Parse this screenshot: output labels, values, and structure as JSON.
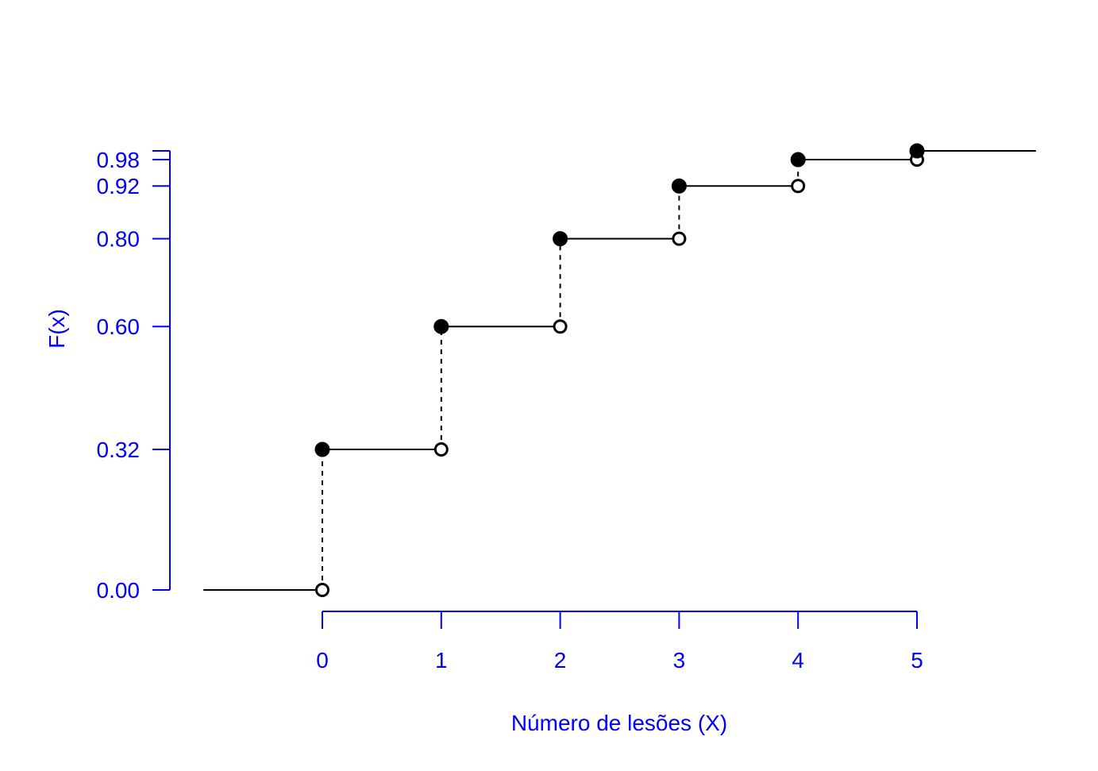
{
  "chart_data": {
    "type": "line",
    "subtype": "step-cdf",
    "title": "",
    "xlabel": "Número de lesões (X)",
    "ylabel": "F(x)",
    "x": [
      0,
      1,
      2,
      3,
      4,
      5
    ],
    "cdf": [
      0.32,
      0.6,
      0.8,
      0.92,
      0.98,
      1.0
    ],
    "xlim": [
      -1,
      6
    ],
    "ylim": [
      0,
      1
    ],
    "x_ticks": [
      0,
      1,
      2,
      3,
      4,
      5
    ],
    "x_tick_labels": [
      "0",
      "1",
      "2",
      "3",
      "4",
      "5"
    ],
    "y_ticks": [
      0.0,
      0.32,
      0.6,
      0.8,
      0.92,
      0.98
    ],
    "y_tick_labels": [
      "0.00",
      "0.32",
      "0.60",
      "0.80",
      "0.92",
      "0.98"
    ],
    "axis_color": "#0000ff",
    "line_color": "#000000",
    "grid": false,
    "legend": false
  }
}
